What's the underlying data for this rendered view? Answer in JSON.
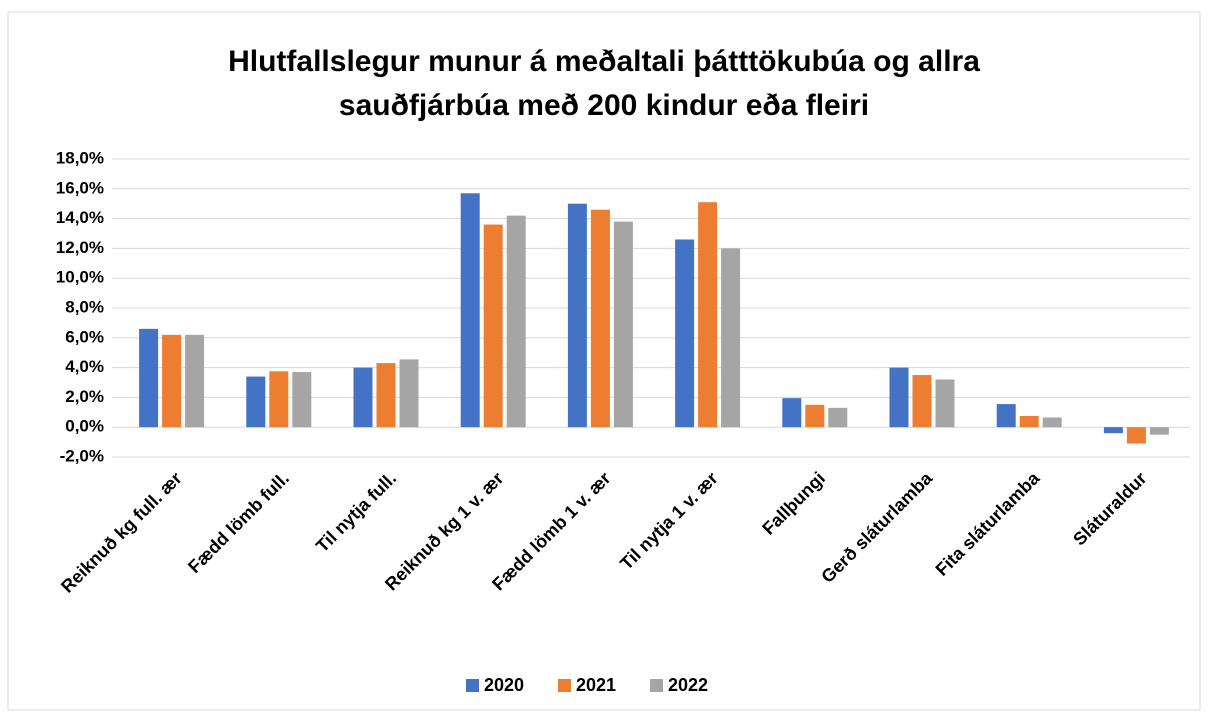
{
  "chart_data": {
    "type": "bar",
    "title": [
      "Hlutfallslegur munur á meðaltali þátttökubúa og allra",
      "sauðfjárbúa með 200 kindur eða fleiri"
    ],
    "categories": [
      "Reiknuð kg full. ær",
      "Fædd lömb full.",
      "Til nytja full.",
      "Reiknuð kg 1 v. ær",
      "Fædd lömb 1 v. ær",
      "Til nytja 1 v. ær",
      "Fallþungi",
      "Gerð sláturlamba",
      "Fita sláturlamba",
      "Sláturaldur"
    ],
    "series": [
      {
        "name": "2020",
        "color": "#4472c4",
        "values": [
          6.6,
          3.4,
          4.0,
          15.7,
          15.0,
          12.6,
          1.95,
          4.0,
          1.55,
          -0.4
        ]
      },
      {
        "name": "2021",
        "color": "#ed7d31",
        "values": [
          6.2,
          3.75,
          4.3,
          13.6,
          14.6,
          15.1,
          1.5,
          3.5,
          0.75,
          -1.1
        ]
      },
      {
        "name": "2022",
        "color": "#a5a5a5",
        "values": [
          6.2,
          3.7,
          4.55,
          14.2,
          13.8,
          12.0,
          1.3,
          3.2,
          0.65,
          -0.5
        ]
      }
    ],
    "ylim": [
      -2,
      18
    ],
    "yticks": [
      {
        "value": -2,
        "label": "-2,0%"
      },
      {
        "value": 0,
        "label": "0,0%"
      },
      {
        "value": 2,
        "label": "2,0%"
      },
      {
        "value": 4,
        "label": "4,0%"
      },
      {
        "value": 6,
        "label": "6,0%"
      },
      {
        "value": 8,
        "label": "8,0%"
      },
      {
        "value": 10,
        "label": "10,0%"
      },
      {
        "value": 12,
        "label": "12,0%"
      },
      {
        "value": 14,
        "label": "14,0%"
      },
      {
        "value": 16,
        "label": "16,0%"
      },
      {
        "value": 18,
        "label": "18,0%"
      }
    ],
    "grid": true,
    "legend": "bottom"
  }
}
